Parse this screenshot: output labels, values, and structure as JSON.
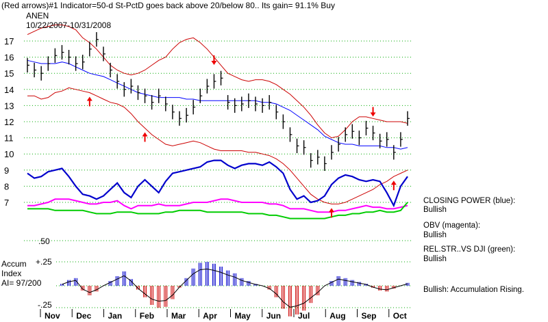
{
  "header": {
    "indicator_line": "(Red arrows)#1 Indicator=50-d St-PctD goes back above 20/below 80.. Its gain= 91.1% Buy",
    "ticker": "ANEN",
    "date_range": "10/22/2007-10/31/2008"
  },
  "accum_panel": {
    "title_line1": "Accum",
    "title_line2": "Index",
    "ai_value": "AI= 97/200",
    "upper_tick": "+.25",
    "lower_tick": "-.25"
  },
  "legend": {
    "closing_power_title": "CLOSING POWER (blue):",
    "closing_power_status": "Bullish",
    "obv_title": "OBV (magenta):",
    "obv_status": "Bullish",
    "relstr_title": "REL.STR..VS DJI (green):",
    "relstr_status": "Bullish",
    "accum_status": "Bullish: Accumulation Rising."
  },
  "colors": {
    "price_bars": "#000000",
    "ma": "#0000ff",
    "bands": "#cc0000",
    "closing_power": "#0000cc",
    "obv": "#ff00ff",
    "relstr": "#00cc00",
    "accum_pos": "#0000cc",
    "accum_neg": "#cc0000",
    "buy_arrow": "#ee0000",
    "sell_arrow": "#ee0000",
    "grid": "#00aa00"
  },
  "chart_data": {
    "type": "line",
    "title": "ANEN",
    "y_ticks": [
      "17",
      "16",
      "15",
      "14",
      "13",
      "12",
      "11",
      "10",
      "9",
      "8",
      "7"
    ],
    "y_range": [
      6.4,
      17.5
    ],
    "rel_str_tick": ".50",
    "x_months": [
      "Nov",
      "Dec",
      "Jan",
      "Feb",
      "Mar",
      "Apr",
      "May",
      "Jun",
      "Jul",
      "Aug",
      "Sep",
      "Oct"
    ],
    "price_close": [
      15.5,
      15.2,
      15.0,
      15.6,
      16.1,
      16.3,
      16.0,
      15.6,
      15.7,
      16.5,
      17.1,
      16.2,
      15.2,
      14.5,
      14.0,
      14.2,
      13.8,
      13.6,
      13.2,
      13.6,
      13.1,
      12.6,
      12.2,
      12.4,
      12.9,
      13.6,
      14.2,
      14.5,
      14.7,
      13.2,
      13.0,
      13.1,
      13.3,
      13.1,
      13.0,
      13.2,
      12.6,
      12.0,
      11.2,
      10.5,
      10.4,
      9.6,
      9.8,
      9.4,
      10.1,
      10.6,
      11.2,
      11.4,
      11.0,
      11.6,
      11.3,
      10.8,
      10.9,
      10.1,
      10.9,
      12.2
    ],
    "ma50": [
      15.8,
      15.7,
      15.6,
      15.6,
      15.6,
      15.7,
      15.6,
      15.4,
      15.2,
      15.0,
      14.9,
      14.8,
      14.6,
      14.4,
      14.2,
      14.0,
      13.8,
      13.7,
      13.6,
      13.5,
      13.5,
      13.5,
      13.5,
      13.4,
      13.4,
      13.3,
      13.3,
      13.3,
      13.3,
      13.3,
      13.3,
      13.3,
      13.3,
      13.3,
      13.2,
      13.2,
      13.1,
      12.9,
      12.7,
      12.4,
      12.1,
      11.8,
      11.5,
      11.1,
      10.9,
      10.7,
      10.6,
      10.6,
      10.5,
      10.5,
      10.5,
      10.5,
      10.4,
      10.4,
      10.3,
      10.4
    ],
    "upper_band": [
      17.4,
      17.6,
      17.8,
      17.9,
      18.0,
      18.0,
      17.9,
      17.7,
      17.2,
      16.9,
      16.5,
      16.0,
      15.5,
      15.2,
      15.0,
      14.9,
      15.0,
      15.2,
      15.5,
      15.8,
      16.0,
      16.5,
      16.9,
      17.1,
      17.2,
      16.9,
      16.5,
      16.0,
      15.5,
      15.0,
      14.8,
      14.6,
      14.5,
      14.6,
      14.6,
      14.5,
      14.3,
      14.0,
      13.7,
      13.3,
      12.9,
      12.4,
      11.8,
      11.3,
      11.0,
      11.1,
      11.5,
      12.0,
      12.3,
      12.3,
      12.2,
      12.1,
      12.0,
      12.0,
      12.0,
      11.9
    ],
    "lower_band": [
      13.6,
      13.6,
      13.4,
      13.5,
      13.8,
      13.9,
      14.1,
      14.0,
      13.9,
      13.8,
      13.6,
      13.4,
      13.2,
      13.1,
      12.9,
      12.5,
      12.0,
      11.6,
      11.2,
      10.9,
      10.6,
      10.5,
      10.6,
      10.7,
      10.8,
      10.7,
      10.5,
      10.3,
      10.2,
      10.2,
      10.2,
      10.2,
      10.1,
      10.1,
      10.0,
      9.9,
      9.7,
      9.4,
      9.0,
      8.5,
      8.0,
      7.5,
      7.2,
      7.0,
      6.9,
      6.9,
      7.0,
      7.2,
      7.4,
      7.6,
      7.8,
      8.1,
      8.3,
      8.6,
      8.8,
      9.0
    ],
    "closing_power": [
      8.8,
      8.5,
      8.6,
      8.9,
      9.0,
      9.1,
      8.6,
      8.0,
      7.5,
      7.4,
      7.2,
      7.4,
      7.8,
      8.2,
      7.6,
      7.3,
      8.0,
      8.4,
      8.0,
      7.6,
      8.3,
      8.8,
      8.9,
      9.0,
      9.1,
      9.2,
      9.5,
      9.6,
      9.6,
      9.3,
      9.1,
      9.3,
      9.4,
      9.4,
      9.3,
      9.5,
      9.2,
      8.8,
      7.8,
      7.2,
      7.4,
      7.0,
      7.1,
      7.4,
      8.1,
      8.5,
      8.7,
      8.6,
      8.4,
      8.3,
      8.4,
      8.3,
      7.6,
      6.8,
      8.0,
      8.6
    ],
    "obv": [
      6.8,
      6.8,
      6.9,
      7.0,
      7.2,
      7.2,
      7.2,
      7.1,
      7.0,
      6.9,
      6.9,
      7.0,
      7.0,
      7.1,
      6.8,
      6.6,
      6.8,
      6.8,
      6.8,
      6.9,
      6.8,
      6.8,
      6.8,
      6.9,
      7.0,
      7.0,
      7.0,
      7.1,
      7.2,
      7.2,
      7.1,
      7.0,
      7.0,
      7.0,
      7.0,
      6.9,
      6.9,
      6.8,
      6.6,
      6.6,
      6.6,
      6.5,
      6.4,
      6.4,
      6.4,
      6.5,
      6.5,
      6.6,
      6.7,
      6.8,
      6.7,
      6.7,
      6.6,
      6.6,
      6.7,
      6.8
    ],
    "rel_str": [
      6.6,
      6.6,
      6.6,
      6.6,
      6.5,
      6.5,
      6.5,
      6.5,
      6.5,
      6.4,
      6.3,
      6.3,
      6.3,
      6.4,
      6.4,
      6.4,
      6.3,
      6.3,
      6.3,
      6.3,
      6.4,
      6.4,
      6.5,
      6.5,
      6.5,
      6.5,
      6.4,
      6.4,
      6.4,
      6.4,
      6.4,
      6.4,
      6.3,
      6.3,
      6.3,
      6.2,
      6.2,
      6.1,
      6.0,
      6.0,
      6.0,
      6.0,
      6.0,
      6.0,
      6.1,
      6.2,
      6.2,
      6.3,
      6.3,
      6.4,
      6.4,
      6.5,
      6.4,
      6.4,
      6.5,
      7.0
    ],
    "accum_index": [
      -0.05,
      -0.1,
      -0.14,
      -0.12,
      -0.05,
      0.02,
      0.06,
      0.08,
      -0.05,
      -0.1,
      -0.06,
      0.0,
      0.05,
      0.1,
      0.15,
      0.07,
      -0.04,
      -0.12,
      -0.2,
      -0.23,
      -0.22,
      -0.14,
      -0.02,
      0.08,
      0.18,
      0.24,
      0.25,
      0.23,
      0.2,
      0.16,
      0.13,
      0.08,
      0.05,
      0.02,
      0.0,
      -0.04,
      -0.12,
      -0.24,
      -0.32,
      -0.3,
      -0.26,
      -0.18,
      -0.1,
      0.0,
      0.05,
      0.1,
      0.08,
      0.06,
      0.04,
      0.02,
      -0.02,
      -0.05,
      -0.06,
      -0.03,
      0.0,
      0.03
    ],
    "buy_arrow_indices": [
      9,
      17,
      44,
      53
    ],
    "sell_arrow_indices": [
      27,
      50
    ]
  }
}
